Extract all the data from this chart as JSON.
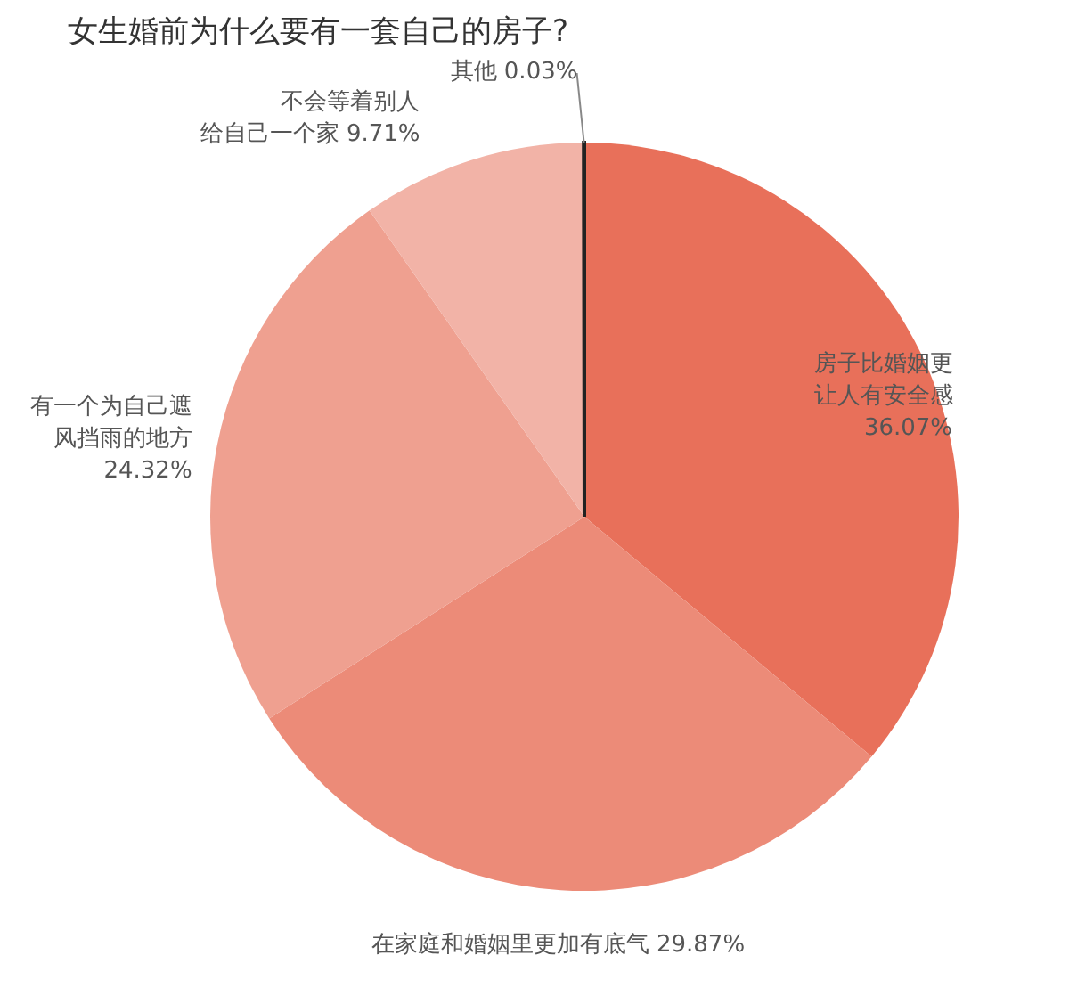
{
  "chart_data": {
    "type": "pie",
    "title": "女生婚前为什么要有一套自己的房子?",
    "categories": [
      "房子比婚姻更让人有安全感",
      "在家庭和婚姻里更加有底气",
      "有一个为自己遮风挡雨的地方",
      "不会等着别人给自己一个家",
      "其他"
    ],
    "values": [
      36.07,
      29.87,
      24.32,
      9.71,
      0.03
    ],
    "colors": [
      "#e8705a",
      "#ec8b78",
      "#efa090",
      "#f2b3a7",
      "#222222"
    ],
    "value_labels": [
      "36.07%",
      "29.87%",
      "24.32%",
      "9.71%",
      "0.03%"
    ]
  }
}
